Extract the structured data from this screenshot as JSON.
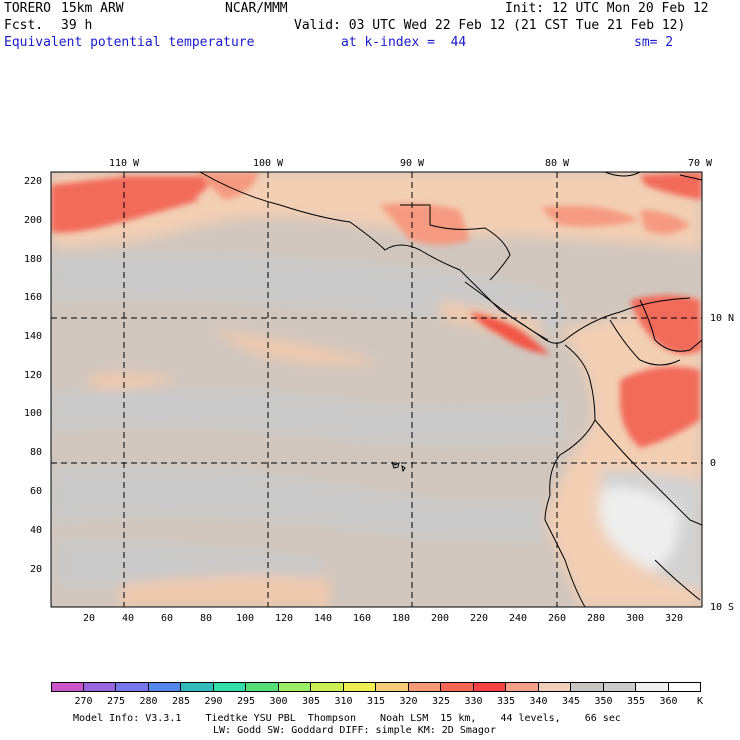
{
  "header": {
    "model": "TORERO",
    "resolution": "15km ARW",
    "center": "NCAR/MMM",
    "init": "Init: 12 UTC Mon 20 Feb 12",
    "fcst_label": "Fcst.",
    "fcst_value": "39 h",
    "valid": "Valid: 03 UTC Wed 22 Feb 12 (21 CST Tue 21 Feb 12)",
    "field": "Equivalent potential temperature",
    "level": "at k-index =  44",
    "smoothing": "sm= 2"
  },
  "top_axis": {
    "labels": [
      "110 W",
      "100 W",
      "90 W",
      "80 W",
      "70 W"
    ]
  },
  "right_axis": {
    "labels": [
      "10 N",
      "0",
      "10 S"
    ]
  },
  "left_axis": {
    "labels": [
      "220",
      "200",
      "180",
      "160",
      "140",
      "120",
      "100",
      "80",
      "60",
      "40",
      "20"
    ]
  },
  "bottom_axis": {
    "labels": [
      "20",
      "40",
      "60",
      "80",
      "100",
      "120",
      "140",
      "160",
      "180",
      "200",
      "220",
      "240",
      "260",
      "280",
      "300",
      "320"
    ]
  },
  "colorbar": {
    "unit": "K",
    "labels": [
      "270",
      "275",
      "280",
      "285",
      "290",
      "295",
      "300",
      "305",
      "310",
      "315",
      "320",
      "325",
      "330",
      "335",
      "340",
      "345",
      "350",
      "355",
      "360"
    ],
    "colors": [
      "#cc55cc",
      "#9966dd",
      "#7777ee",
      "#5588ee",
      "#33bbbb",
      "#33ddaa",
      "#55dd77",
      "#99ee66",
      "#ccee55",
      "#eeee55",
      "#f5cc77",
      "#f59977",
      "#f56655",
      "#f54444",
      "#f5a088",
      "#f0d0b8",
      "#c8c4c0",
      "#cccccc",
      "#f0f0f0",
      "#ffffff"
    ]
  },
  "footer": {
    "line1": "Model Info: V3.3.1    Tiedtke YSU PBL  Thompson    Noah LSM  15 km,    44 levels,    66 sec",
    "line2": "LW: Godd SW: Goddard DIFF: simple KM: 2D Smagor"
  }
}
